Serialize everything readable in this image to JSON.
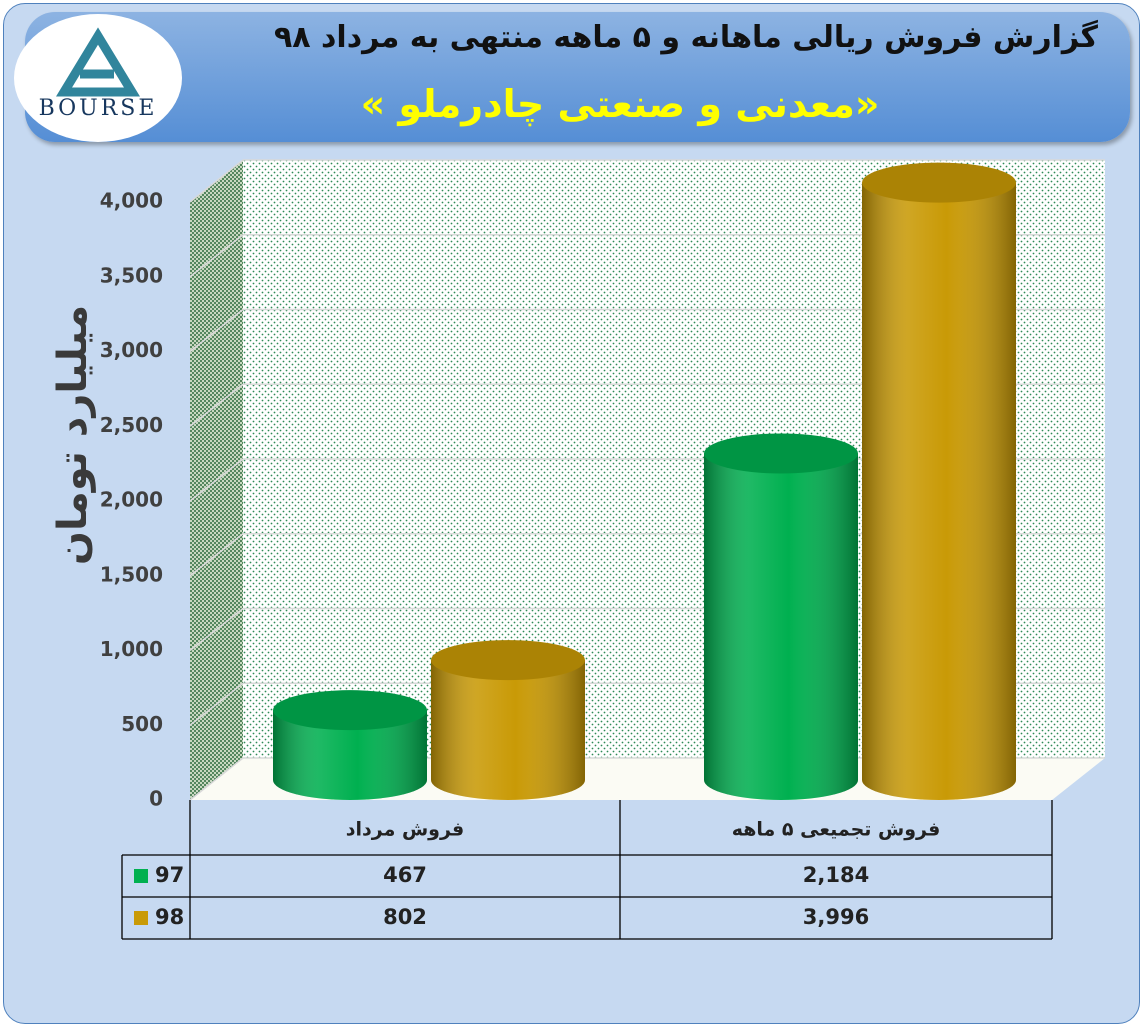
{
  "chart_data": {
    "type": "bar",
    "title": "گزارش فروش ریالی ماهانه و ۵ ماهه منتهی به مرداد ۹۸",
    "subtitle": "«معدنی و صنعتی چادرملو »",
    "logo": "BOURSE",
    "y_label": "میلیارد تومان",
    "categories": [
      "فروش مرداد",
      "فروش تجمیعی ۵ ماهه"
    ],
    "series": [
      {
        "name": "97",
        "color": "#00b050",
        "values": [
          467,
          2184
        ],
        "value_labels": [
          "467",
          "2,184"
        ]
      },
      {
        "name": "98",
        "color": "#c99a06",
        "values": [
          802,
          3996
        ],
        "value_labels": [
          "802",
          "3,996"
        ]
      }
    ],
    "ylim": [
      0,
      4000
    ],
    "yticks": [
      0,
      500,
      {
        "value": 1000,
        "label": "1,000"
      },
      {
        "value": 1500,
        "label": "1,500"
      },
      {
        "value": 2000,
        "label": "2,000"
      },
      {
        "value": 2500,
        "label": "2,500"
      },
      {
        "value": 3000,
        "label": "3,000"
      },
      {
        "value": 3500,
        "label": "3,500"
      },
      {
        "value": 4000,
        "label": "4,000"
      }
    ],
    "grid": true
  }
}
